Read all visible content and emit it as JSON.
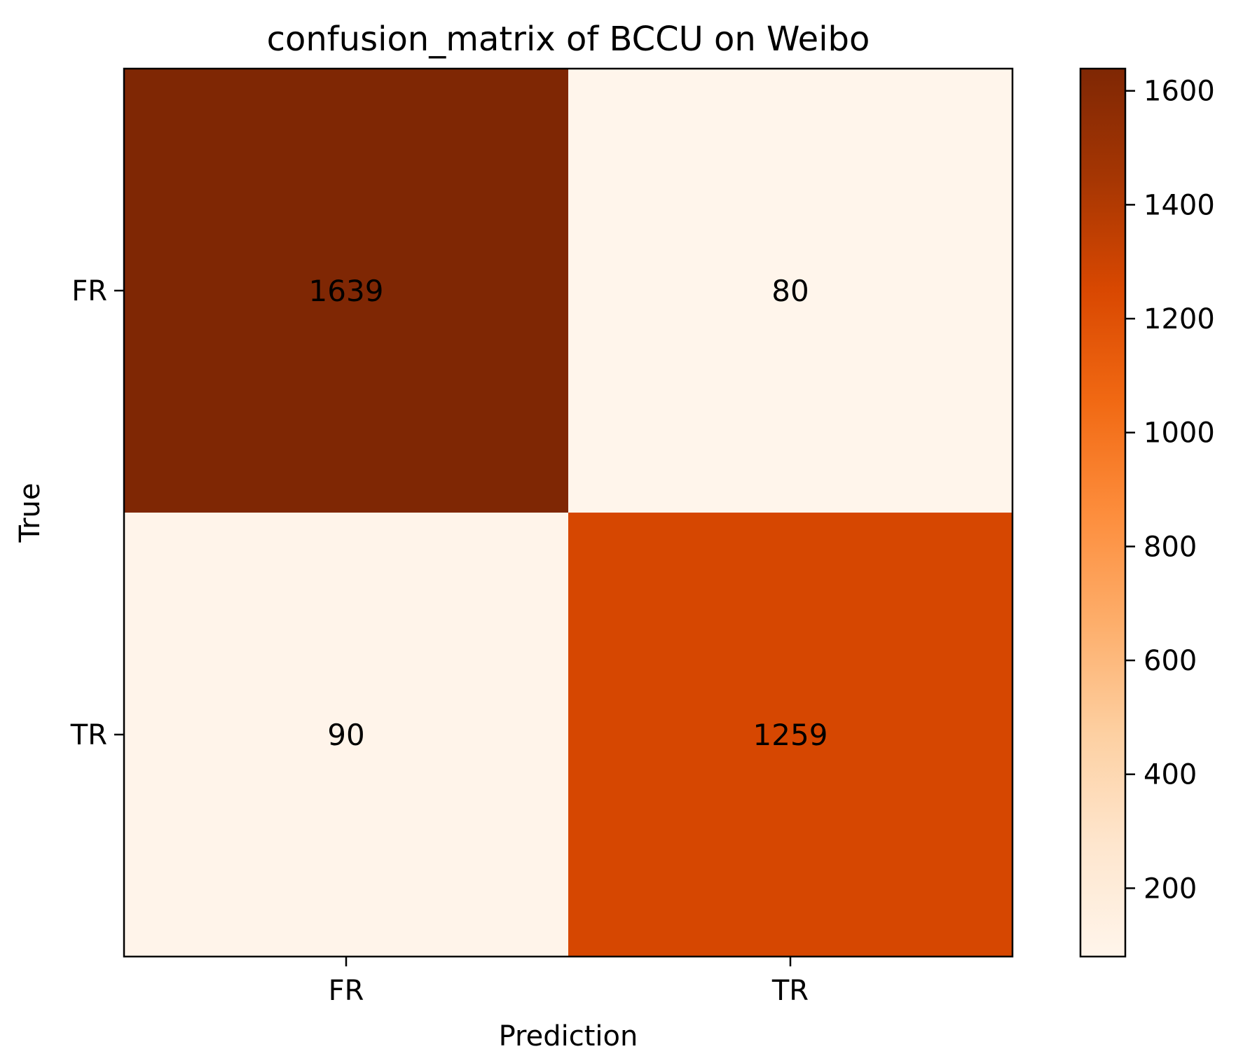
{
  "chart_data": {
    "type": "heatmap",
    "title": "confusion_matrix of BCCU on Weibo",
    "xlabel": "Prediction",
    "ylabel": "True",
    "x_categories": [
      "FR",
      "TR"
    ],
    "y_categories": [
      "FR",
      "TR"
    ],
    "matrix": [
      [
        1639,
        80
      ],
      [
        90,
        1259
      ]
    ],
    "matrix_labels": [
      [
        "1639",
        "80"
      ],
      [
        "90",
        "1259"
      ]
    ],
    "colormap": "Oranges",
    "color_range": [
      80,
      1639
    ],
    "colorbar_ticks": [
      200,
      400,
      600,
      800,
      1000,
      1200,
      1400,
      1600
    ],
    "colorbar_tick_labels": [
      "200",
      "400",
      "600",
      "800",
      "1000",
      "1200",
      "1400",
      "1600"
    ],
    "grid": false,
    "colors": {
      "stops": [
        "#fff5eb",
        "#fee6ce",
        "#fdd0a2",
        "#fdae6b",
        "#fd8d3c",
        "#f16913",
        "#d94801",
        "#a63603",
        "#7f2704"
      ]
    }
  }
}
